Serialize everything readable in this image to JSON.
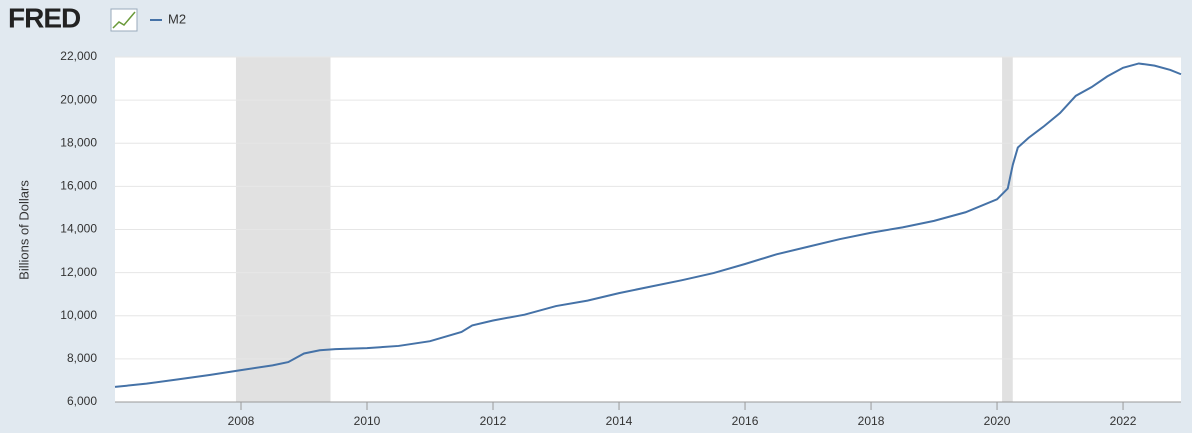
{
  "brand": "FRED",
  "chart_data": {
    "type": "line",
    "y_label": "Billions of Dollars",
    "x": [
      2006.0,
      2006.5,
      2007.0,
      2007.5,
      2008.0,
      2008.5,
      2008.75,
      2009.0,
      2009.25,
      2009.5,
      2010.0,
      2010.5,
      2011.0,
      2011.5,
      2011.67,
      2012.0,
      2012.5,
      2013.0,
      2013.5,
      2014.0,
      2014.5,
      2015.0,
      2015.5,
      2016.0,
      2016.5,
      2017.0,
      2017.5,
      2018.0,
      2018.5,
      2019.0,
      2019.5,
      2020.0,
      2020.17,
      2020.25,
      2020.33,
      2020.5,
      2020.75,
      2021.0,
      2021.25,
      2021.5,
      2021.75,
      2022.0,
      2022.25,
      2022.5,
      2022.75,
      2022.92
    ],
    "series": [
      {
        "name": "M2",
        "color": "#4572a7",
        "values": [
          6700,
          6850,
          7050,
          7250,
          7480,
          7700,
          7850,
          8250,
          8400,
          8450,
          8500,
          8600,
          8820,
          9250,
          9550,
          9780,
          10050,
          10450,
          10700,
          11050,
          11350,
          11650,
          11980,
          12400,
          12850,
          13200,
          13550,
          13850,
          14100,
          14400,
          14800,
          15400,
          15900,
          17000,
          17800,
          18250,
          18800,
          19400,
          20200,
          20600,
          21100,
          21500,
          21700,
          21600,
          21400,
          21200
        ]
      }
    ],
    "recessions": [
      [
        2007.92,
        2009.42
      ],
      [
        2020.08,
        2020.25
      ]
    ],
    "recession_color": "#e1e1e1",
    "xlim": [
      2006.0,
      2022.92
    ],
    "xticks": [
      2008,
      2010,
      2012,
      2014,
      2016,
      2018,
      2020,
      2022
    ],
    "ylim": [
      6000,
      22000
    ],
    "yticks": [
      {
        "value": 6000,
        "label": "6,000"
      },
      {
        "value": 8000,
        "label": "8,000"
      },
      {
        "value": 10000,
        "label": "10,000"
      },
      {
        "value": 12000,
        "label": "12,000"
      },
      {
        "value": 14000,
        "label": "14,000"
      },
      {
        "value": 16000,
        "label": "16,000"
      },
      {
        "value": 18000,
        "label": "18,000"
      },
      {
        "value": 20000,
        "label": "20,000"
      },
      {
        "value": 22000,
        "label": "22,000"
      }
    ],
    "grid": true
  }
}
